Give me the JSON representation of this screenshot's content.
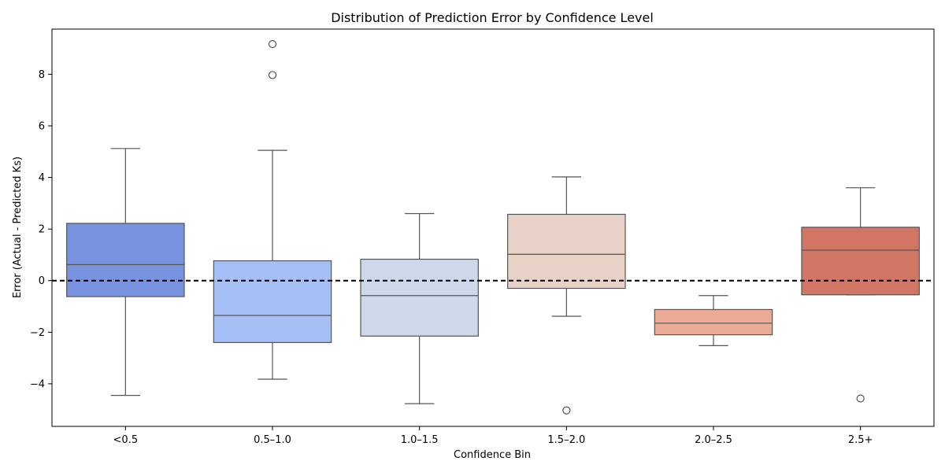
{
  "chart_data": {
    "type": "box",
    "title": "Distribution of Prediction Error by Confidence Level",
    "xlabel": "Confidence Bin",
    "ylabel": "Error (Actual - Predicted Ks)",
    "categories": [
      "<0.5",
      "0.5–1.0",
      "1.0–1.5",
      "1.5–2.0",
      "2.0–2.5",
      "2.5+"
    ],
    "ylim": [
      -5.65,
      9.75
    ],
    "yticks": [
      -4,
      -2,
      0,
      2,
      4,
      6,
      8
    ],
    "ytick_labels": [
      "−4",
      "−2",
      "0",
      "2",
      "4",
      "6",
      "8"
    ],
    "reference_line": {
      "y": 0,
      "style": "dashed",
      "color": "#000000"
    },
    "boxes": [
      {
        "category": "<0.5",
        "whisker_low": -4.45,
        "q1": -0.62,
        "median": 0.62,
        "q3": 2.22,
        "whisker_high": 5.12,
        "outliers": [],
        "color": "#7793e0"
      },
      {
        "category": "0.5–1.0",
        "whisker_low": -3.82,
        "q1": -2.4,
        "median": -1.35,
        "q3": 0.77,
        "whisker_high": 5.05,
        "outliers": [
          7.97,
          9.17
        ],
        "color": "#a5bef3"
      },
      {
        "category": "1.0–1.5",
        "whisker_low": -4.77,
        "q1": -2.15,
        "median": -0.58,
        "q3": 0.83,
        "whisker_high": 2.6,
        "outliers": [],
        "color": "#cdd8eb"
      },
      {
        "category": "1.5–2.0",
        "whisker_low": -1.38,
        "q1": -0.3,
        "median": 1.02,
        "q3": 2.57,
        "whisker_high": 4.02,
        "outliers": [
          -5.03
        ],
        "color": "#e8d1c7"
      },
      {
        "category": "2.0–2.5",
        "whisker_low": -2.52,
        "q1": -2.1,
        "median": -1.65,
        "q3": -1.12,
        "whisker_high": -0.58,
        "outliers": [],
        "color": "#eaab94"
      },
      {
        "category": "2.5+",
        "whisker_low": -0.55,
        "q1": -0.55,
        "median": 1.18,
        "q3": 2.07,
        "whisker_high": 3.6,
        "outliers": [
          -4.57
        ],
        "color": "#d17664"
      }
    ],
    "line_color": "#555555",
    "grid": false,
    "legend": "none"
  }
}
